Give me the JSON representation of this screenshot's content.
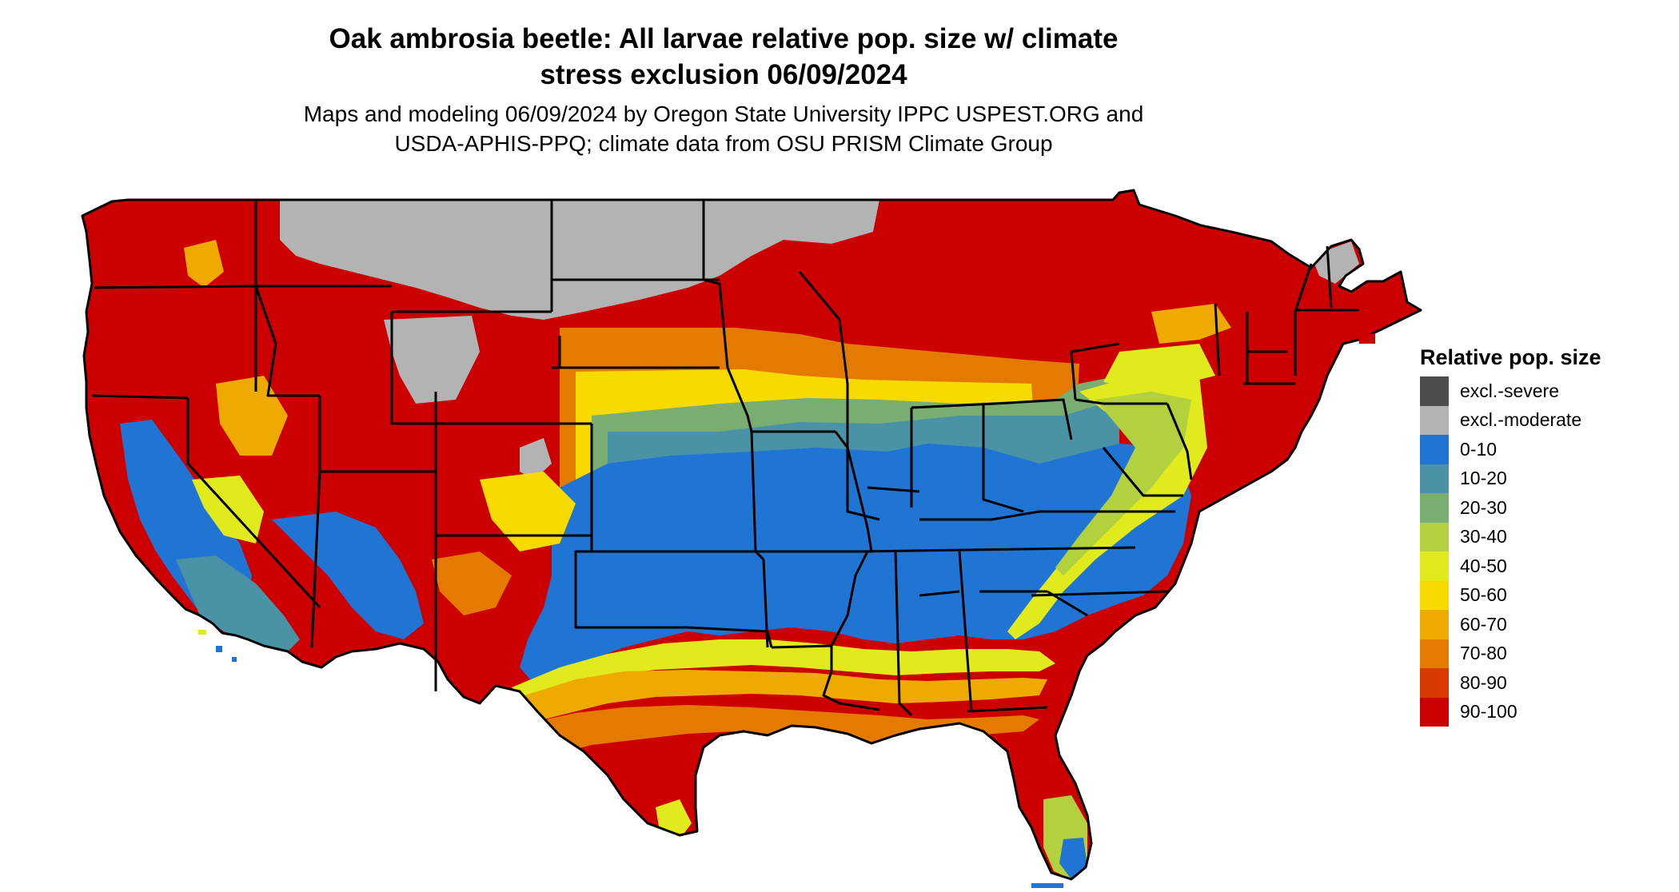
{
  "title": {
    "line1": "Oak ambrosia beetle: All larvae relative pop. size w/ climate",
    "line2": "stress exclusion 06/09/2024"
  },
  "subtitle": {
    "line1": "Maps and modeling 06/09/2024 by Oregon State University IPPC USPEST.ORG and",
    "line2": "USDA-APHIS-PPQ; climate data from OSU PRISM Climate Group"
  },
  "legend": {
    "title": "Relative pop. size",
    "items": [
      {
        "label": "excl.-severe",
        "color": "#4d4d4d"
      },
      {
        "label": "excl.-moderate",
        "color": "#b3b3b3"
      },
      {
        "label": "0-10",
        "color": "#1f74d4"
      },
      {
        "label": "10-20",
        "color": "#4a93a6"
      },
      {
        "label": "20-30",
        "color": "#79ad72"
      },
      {
        "label": "30-40",
        "color": "#b3d13e"
      },
      {
        "label": "40-50",
        "color": "#e1ea1c"
      },
      {
        "label": "50-60",
        "color": "#f6da00"
      },
      {
        "label": "60-70",
        "color": "#eeaa00"
      },
      {
        "label": "70-80",
        "color": "#e47a00"
      },
      {
        "label": "80-90",
        "color": "#d83a00"
      },
      {
        "label": "90-100",
        "color": "#cc0000"
      }
    ]
  },
  "map": {
    "region": "Contiguous United States"
  }
}
